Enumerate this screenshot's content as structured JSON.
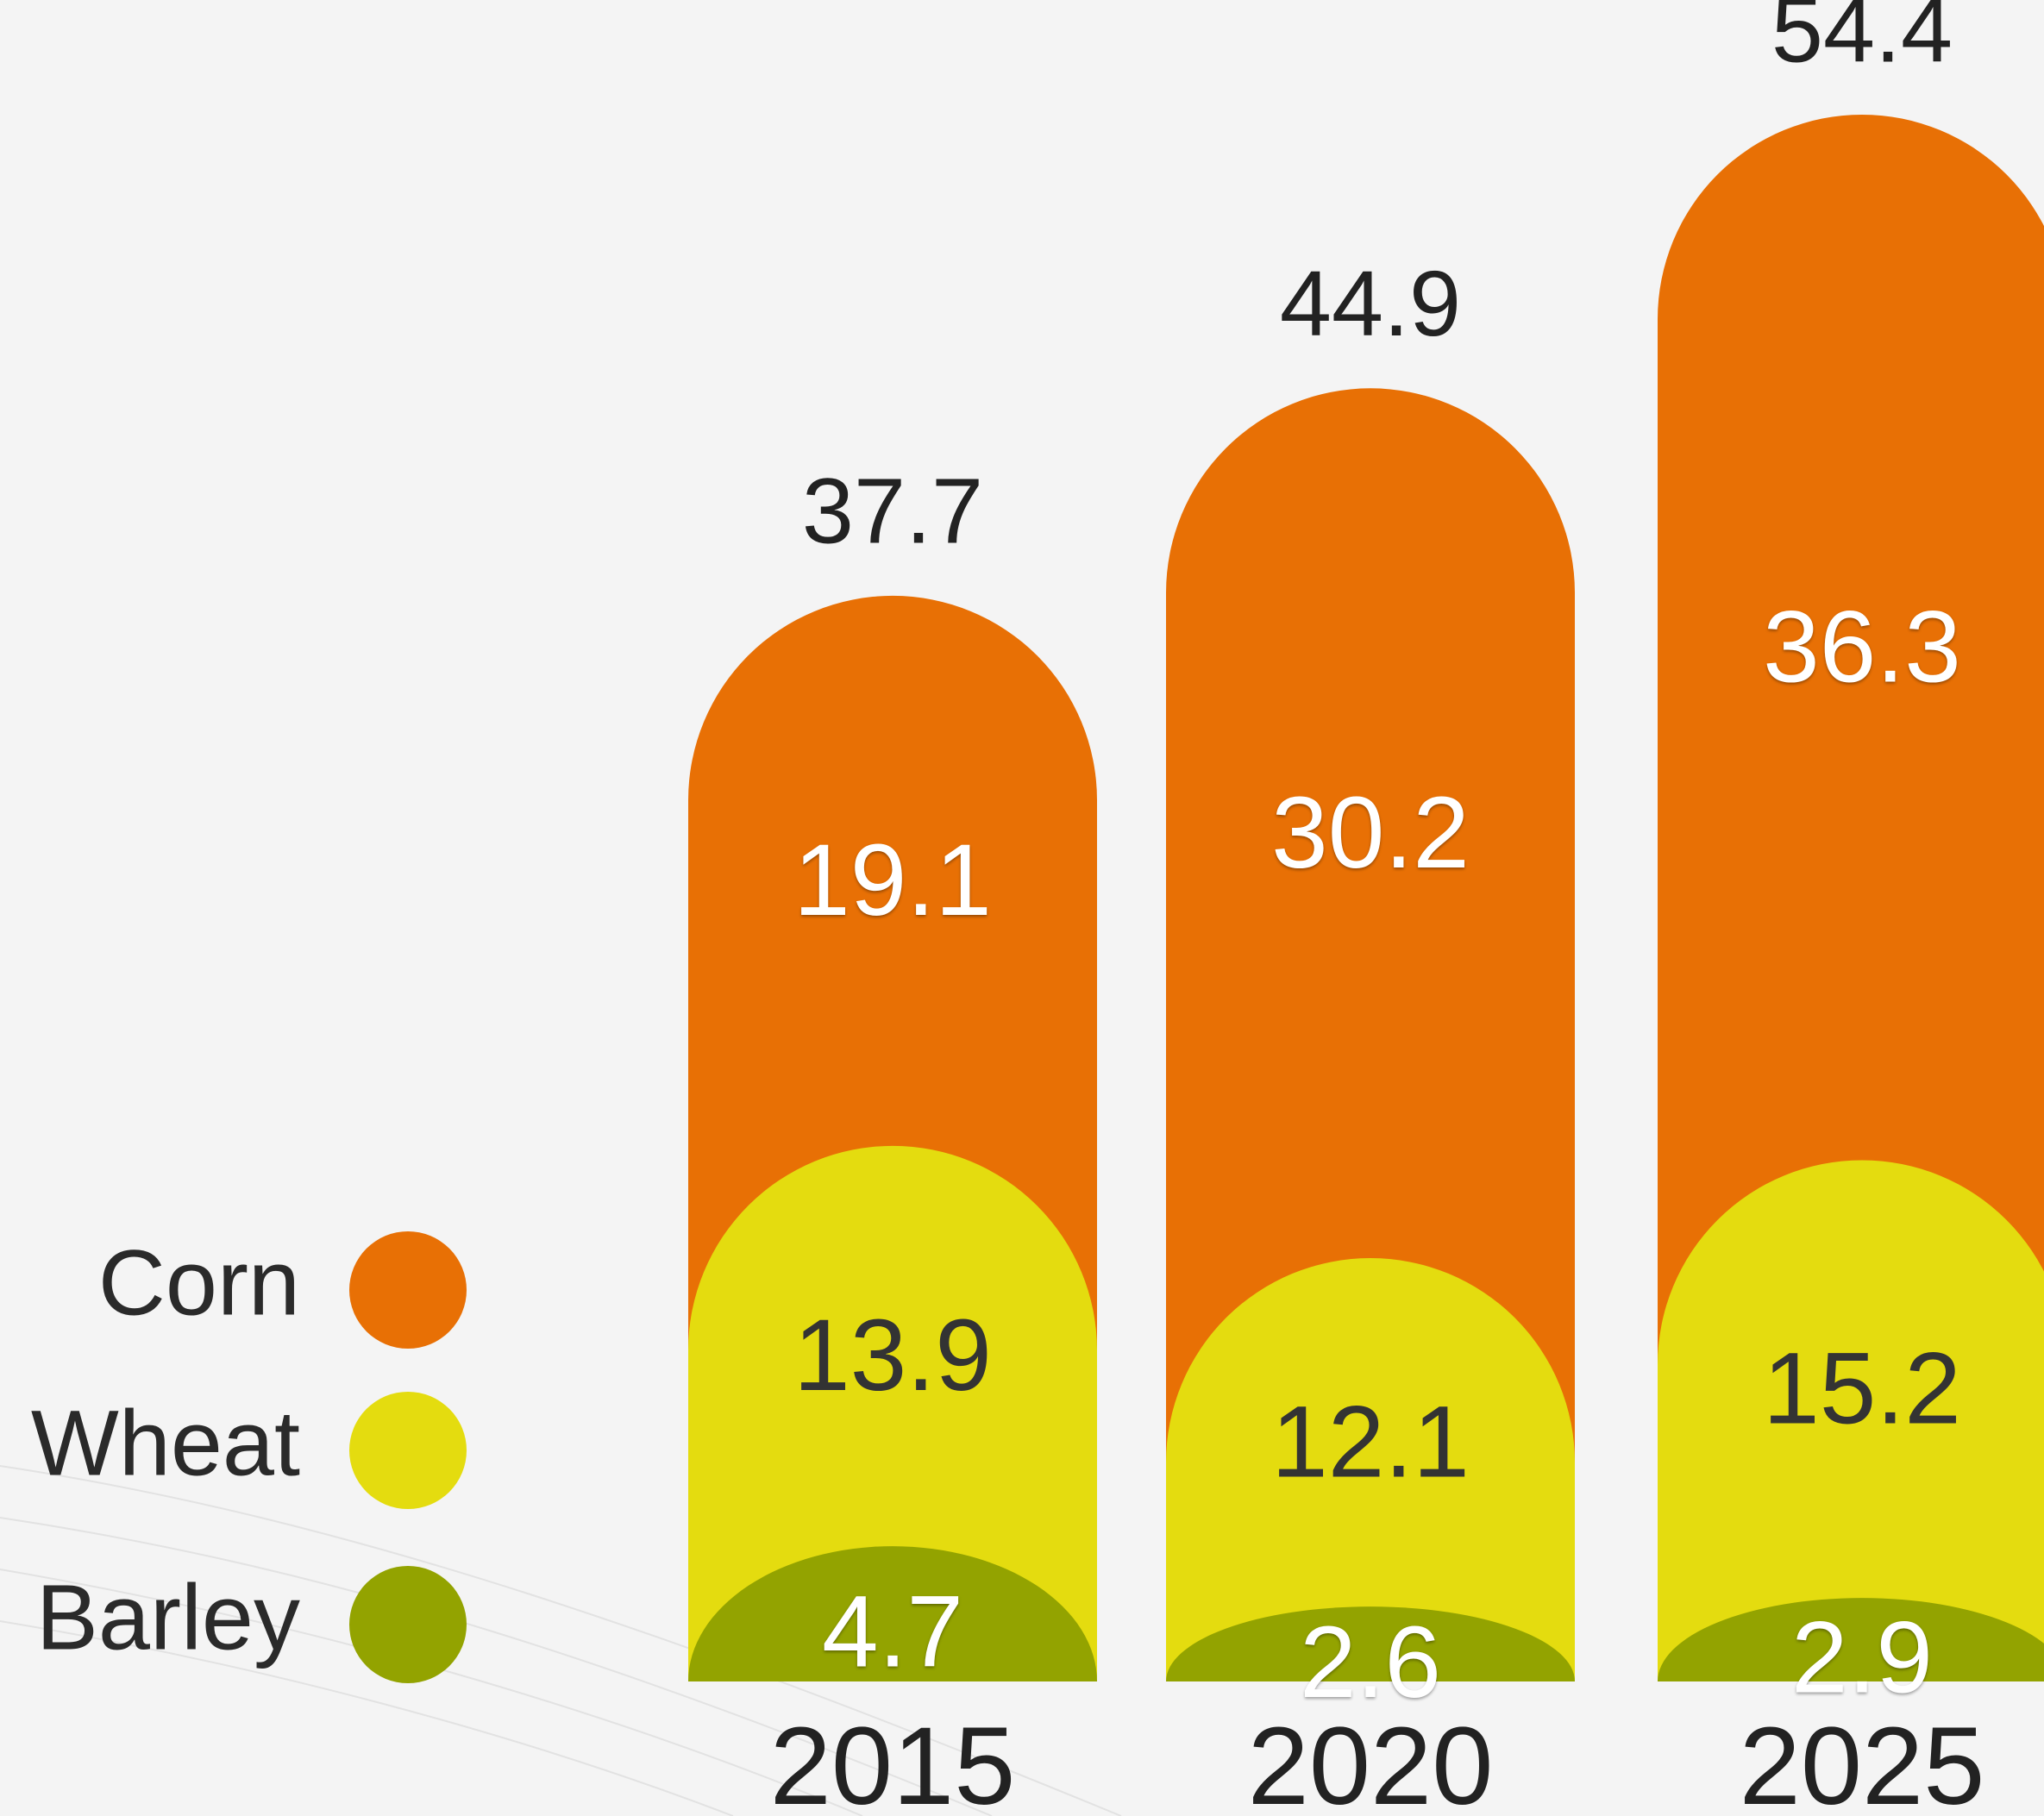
{
  "chart_data": {
    "type": "stacked-bar",
    "categories": [
      "2015",
      "2020",
      "2025"
    ],
    "series": [
      {
        "name": "Barley",
        "color": "#93a300",
        "values": [
          4.7,
          2.6,
          2.9
        ]
      },
      {
        "name": "Wheat",
        "color": "#e4dc0f",
        "values": [
          13.9,
          12.1,
          15.2
        ]
      },
      {
        "name": "Corn",
        "color": "#e87005",
        "values": [
          19.1,
          30.2,
          36.3
        ]
      }
    ],
    "totals": [
      37.7,
      44.9,
      54.4
    ]
  }
}
